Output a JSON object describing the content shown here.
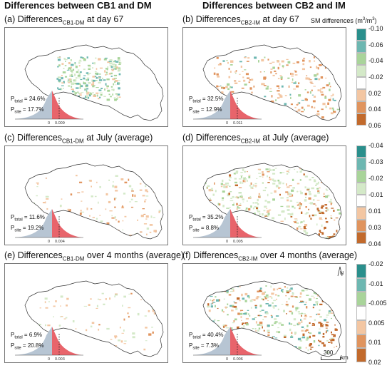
{
  "column_headers": {
    "left": "Differences between CB1 and DM",
    "right": "Differences between CB2 and IM"
  },
  "colorbar_title": {
    "text": "SM differences (m",
    "sup": "3",
    "mid": "/m",
    "sup2": "3",
    "end": ")"
  },
  "colors": {
    "teal_dark": "#2a8f8c",
    "teal_mid": "#6db7b1",
    "green_light": "#a9d49a",
    "green_pale": "#d4e9c8",
    "white": "#ffffff",
    "orange_light": "#f3c6a2",
    "orange_mid": "#e0945e",
    "orange_dark": "#c26a2c",
    "hist_gray": "#b7c5d3",
    "hist_red": "#e8646b"
  },
  "colorbars": [
    {
      "labels": [
        "-0.10",
        "-0.06",
        "-0.04",
        "-0.02",
        "0.02",
        "0.04",
        "0.06"
      ]
    },
    {
      "labels": [
        "-0.04",
        "-0.03",
        "-0.02",
        "-0.01",
        "0.01",
        "0.03",
        "0.04"
      ]
    },
    {
      "labels": [
        "-0.02",
        "-0.01",
        "-0.005",
        "0.005",
        "0.01",
        "0.02"
      ]
    }
  ],
  "scale_bar": {
    "value": "300",
    "unit": "km"
  },
  "north_label": "N",
  "chart_data": [
    {
      "type": "heatmap",
      "panel": "a",
      "title_pre": "(a) Differences",
      "title_sub": "CB1-DM",
      "title_post": " at day 67",
      "p_total": "24.6%",
      "p_site": "17.7%",
      "hist_ticks": [
        "0",
        "0.009"
      ]
    },
    {
      "type": "heatmap",
      "panel": "b",
      "title_pre": "(b) Differences",
      "title_sub": "CB2-IM",
      "title_post": " at day 67",
      "p_total": "32.5%",
      "p_site": "12.9%",
      "hist_ticks": [
        "0",
        "0.011"
      ]
    },
    {
      "type": "heatmap",
      "panel": "c",
      "title_pre": "(c) Differences",
      "title_sub": "CB1-DM",
      "title_post": " at July (average)",
      "p_total": "11.6%",
      "p_site": "19.2%",
      "hist_ticks": [
        "0",
        "0.004"
      ]
    },
    {
      "type": "heatmap",
      "panel": "d",
      "title_pre": "(d) Differences",
      "title_sub": "CB2-IM",
      "title_post": " at July (average)",
      "p_total": "35.2%",
      "p_site": "8.8%",
      "hist_ticks": [
        "0",
        "0.005"
      ]
    },
    {
      "type": "heatmap",
      "panel": "e",
      "title_pre": "(e) Differences",
      "title_sub": "CB1-DM",
      "title_post": " over 4 months (average)",
      "p_total": "6.9%",
      "p_site": "20.8%",
      "hist_ticks": [
        "0",
        "0.003"
      ]
    },
    {
      "type": "heatmap",
      "panel": "f",
      "title_pre": "(f) Differences",
      "title_sub": "CB2-IM",
      "title_post": " over 4 months (average)",
      "p_total": "40.4%",
      "p_site": "7.3%",
      "hist_ticks": [
        "0",
        "0.006"
      ]
    }
  ]
}
